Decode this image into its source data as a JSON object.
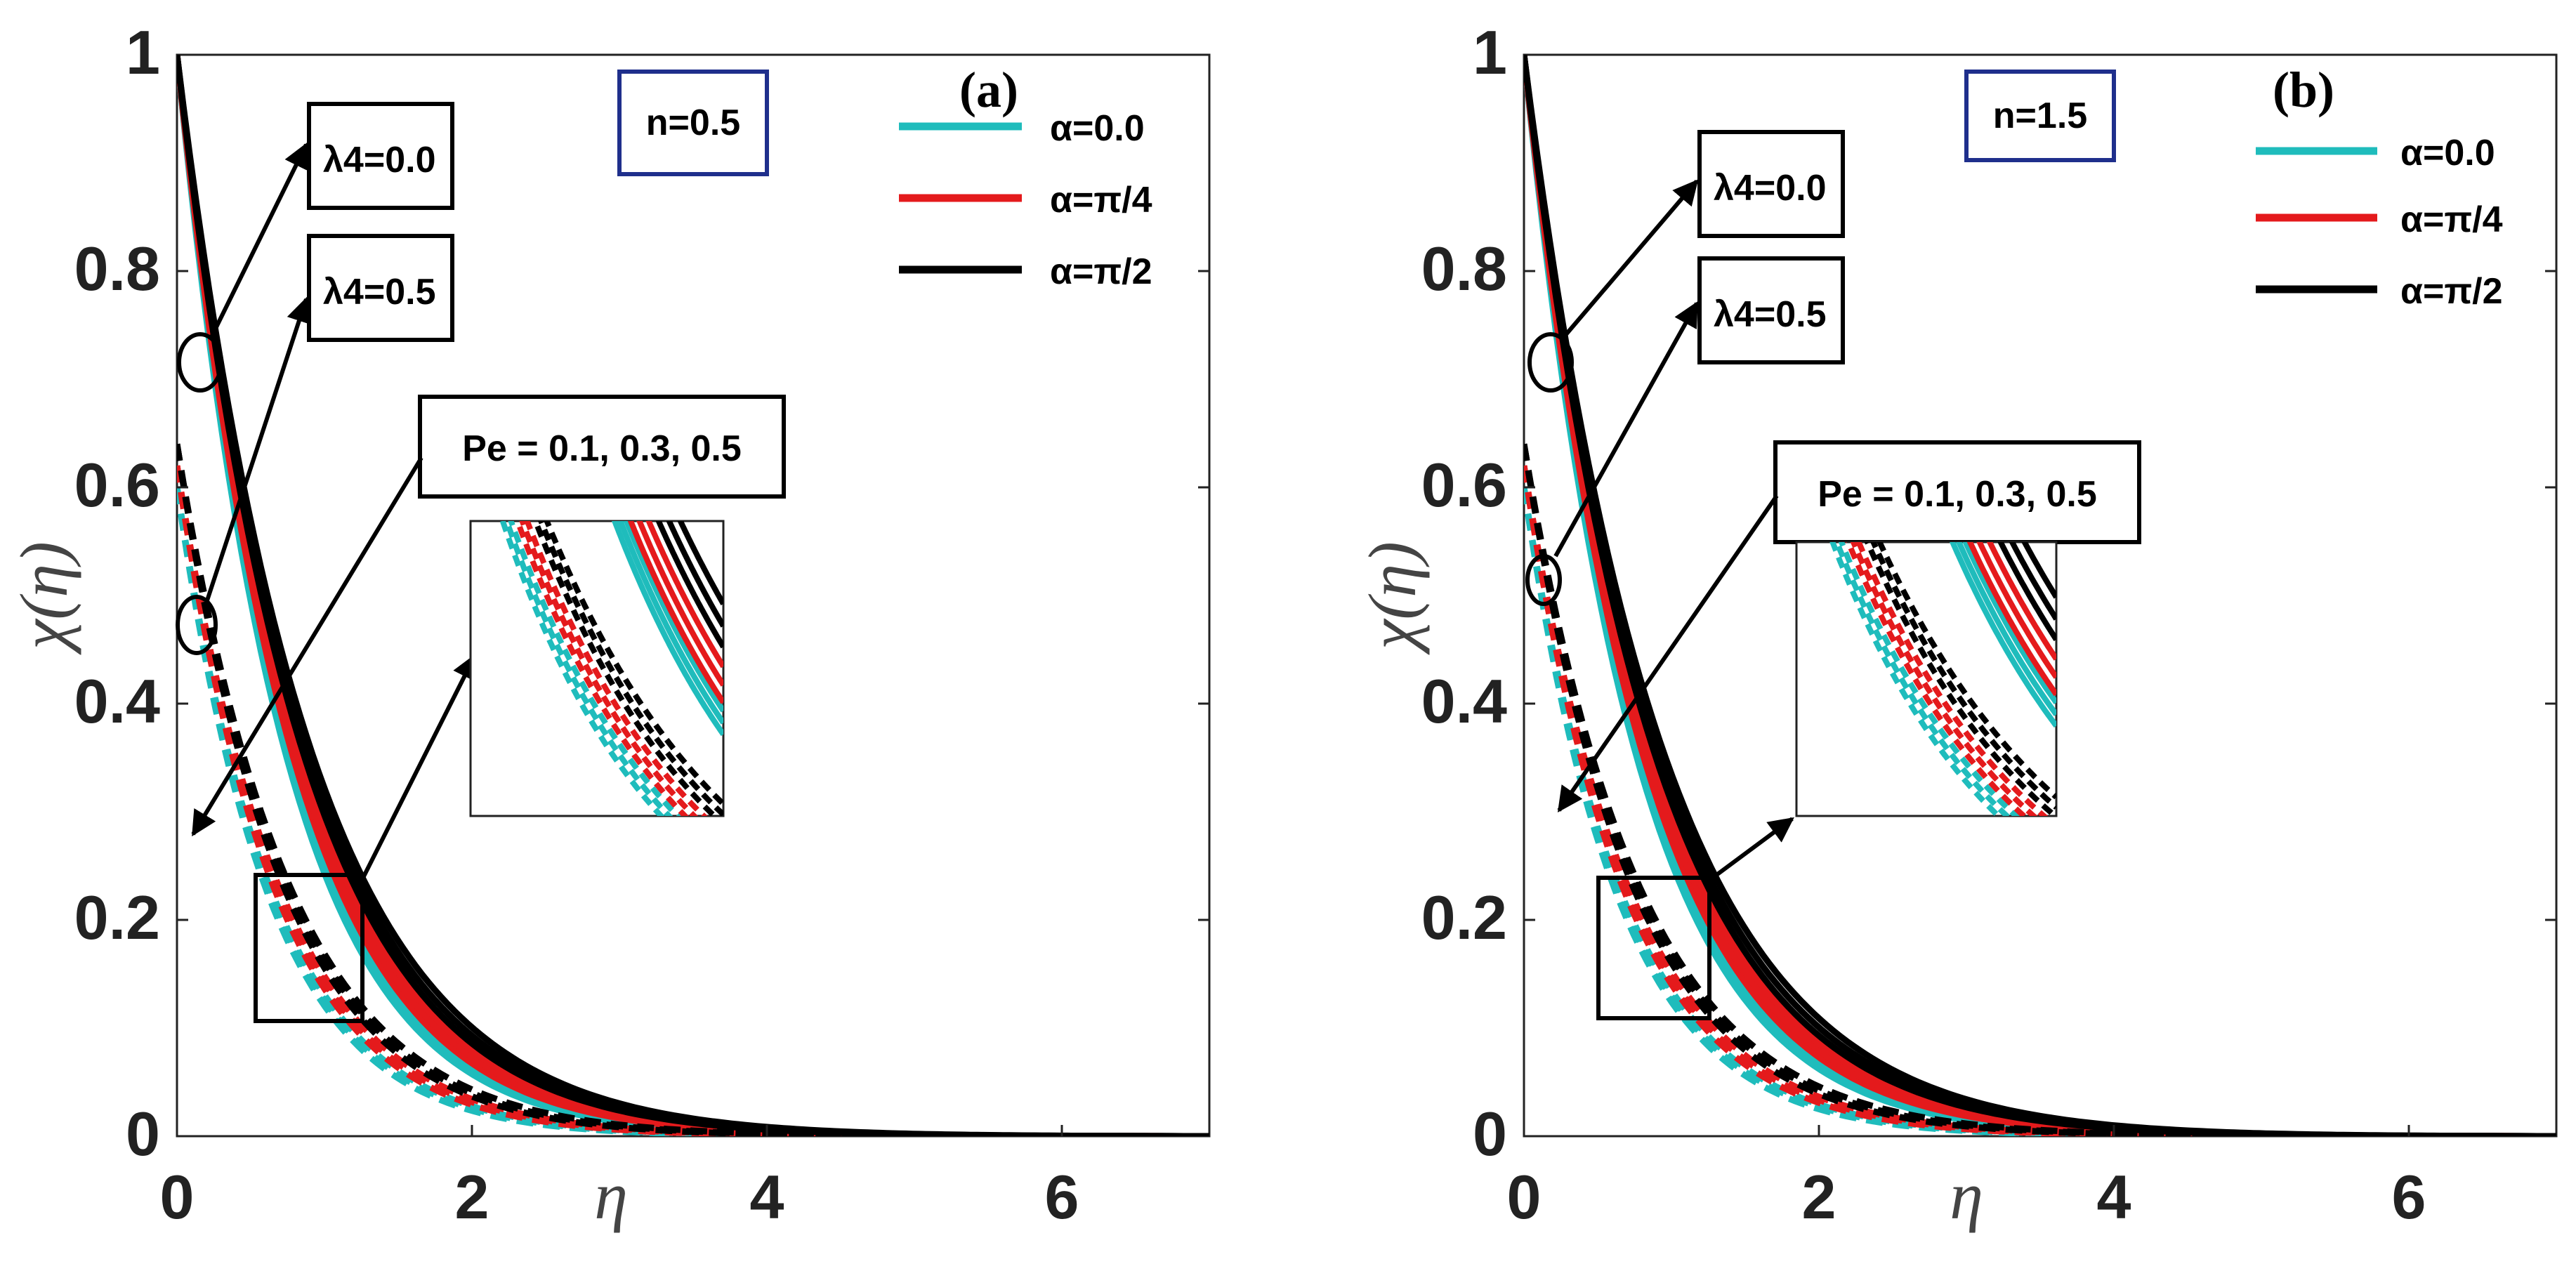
{
  "colors": {
    "cyan": "#1fbcbc",
    "red": "#e41a1c",
    "black": "#000000",
    "nbox": "#1f2f8c"
  },
  "chart_data": [
    {
      "type": "line",
      "panel_label": "(a)",
      "n_label": "n=0.5",
      "xlabel": "η",
      "ylabel": "χ(η)",
      "xlim": [
        0,
        7
      ],
      "ylim": [
        0,
        1
      ],
      "xticks": [
        "0",
        "2",
        "4",
        "6"
      ],
      "yticks": [
        "0",
        "0.2",
        "0.4",
        "0.6",
        "0.8",
        "1"
      ],
      "legend": [
        "α=0.0",
        "α=π/4",
        "α=π/2"
      ],
      "annotations": {
        "lambda_solid": "λ4=0.0",
        "lambda_dashed": "λ4=0.5",
        "pe": "Pe = 0.1, 0.3, 0.5"
      },
      "series_groups": [
        {
          "name": "α=0.0",
          "color": "cyan",
          "solid_k": [
            1.26,
            1.23,
            1.2
          ],
          "dashed_start": 0.6,
          "dashed_k": [
            1.45,
            1.41,
            1.37
          ]
        },
        {
          "name": "α=π/4",
          "color": "red",
          "solid_k": [
            1.18,
            1.14,
            1.1
          ],
          "dashed_start": 0.62,
          "dashed_k": [
            1.36,
            1.32,
            1.28
          ]
        },
        {
          "name": "α=π/2",
          "color": "black",
          "solid_k": [
            1.06,
            1.02,
            0.98
          ],
          "dashed_start": 0.64,
          "dashed_k": [
            1.26,
            1.22,
            1.18
          ]
        }
      ]
    },
    {
      "type": "line",
      "panel_label": "(b)",
      "n_label": "n=1.5",
      "xlabel": "η",
      "ylabel": "χ(η)",
      "xlim": [
        0,
        7
      ],
      "ylim": [
        0,
        1
      ],
      "xticks": [
        "0",
        "2",
        "4",
        "6"
      ],
      "yticks": [
        "0",
        "0.2",
        "0.4",
        "0.6",
        "0.8",
        "1"
      ],
      "legend": [
        "α=0.0",
        "α=π/4",
        "α=π/2"
      ],
      "annotations": {
        "lambda_solid": "λ4=0.0",
        "lambda_dashed": "λ4=0.5",
        "pe": "Pe = 0.1, 0.3, 0.5"
      },
      "series_groups": [
        {
          "name": "α=0.0",
          "color": "cyan",
          "solid_k": [
            1.22,
            1.19,
            1.16
          ],
          "dashed_start": 0.6,
          "dashed_k": [
            1.42,
            1.38,
            1.34
          ]
        },
        {
          "name": "α=π/4",
          "color": "red",
          "solid_k": [
            1.14,
            1.1,
            1.06
          ],
          "dashed_start": 0.62,
          "dashed_k": [
            1.33,
            1.29,
            1.25
          ]
        },
        {
          "name": "α=π/2",
          "color": "black",
          "solid_k": [
            1.02,
            0.98,
            0.94
          ],
          "dashed_start": 0.64,
          "dashed_k": [
            1.23,
            1.19,
            1.15
          ]
        }
      ]
    }
  ]
}
